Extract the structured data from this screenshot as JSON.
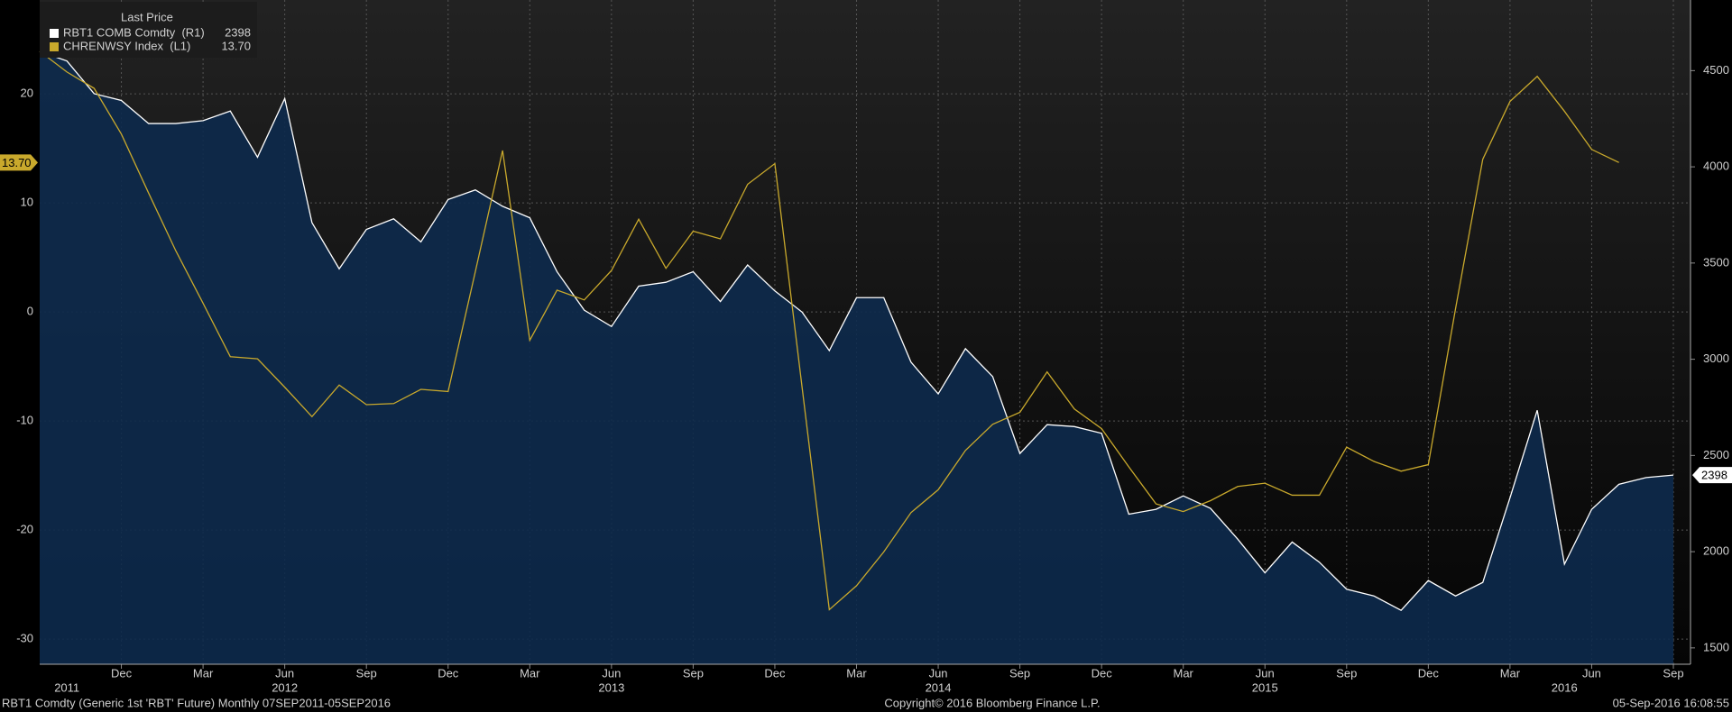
{
  "chart_data": {
    "type": "line",
    "legend_title": "Last Price",
    "x": [
      "2011-09",
      "2011-10",
      "2011-11",
      "2011-12",
      "2012-01",
      "2012-02",
      "2012-03",
      "2012-04",
      "2012-05",
      "2012-06",
      "2012-07",
      "2012-08",
      "2012-09",
      "2012-10",
      "2012-11",
      "2012-12",
      "2013-01",
      "2013-02",
      "2013-03",
      "2013-04",
      "2013-05",
      "2013-06",
      "2013-07",
      "2013-08",
      "2013-09",
      "2013-10",
      "2013-11",
      "2013-12",
      "2014-01",
      "2014-02",
      "2014-03",
      "2014-04",
      "2014-05",
      "2014-06",
      "2014-07",
      "2014-08",
      "2014-09",
      "2014-10",
      "2014-11",
      "2014-12",
      "2015-01",
      "2015-02",
      "2015-03",
      "2015-04",
      "2015-05",
      "2015-06",
      "2015-07",
      "2015-08",
      "2015-09",
      "2015-10",
      "2015-11",
      "2015-12",
      "2016-01",
      "2016-02",
      "2016-03",
      "2016-04",
      "2016-05",
      "2016-06",
      "2016-07",
      "2016-08",
      "2016-09"
    ],
    "series": [
      {
        "name": "RBT1 COMB Comdty  (R1)",
        "color": "#ffffff",
        "fill": "#0d2a4c",
        "axis": "y2",
        "last_price": 2398,
        "values": [
          4600,
          4550,
          4380,
          4345,
          4225,
          4225,
          4240,
          4290,
          4050,
          4355,
          3710,
          3470,
          3675,
          3730,
          3610,
          3830,
          3880,
          3795,
          3735,
          3455,
          3255,
          3170,
          3380,
          3400,
          3455,
          3300,
          3490,
          3355,
          3245,
          3045,
          3320,
          3320,
          2985,
          2820,
          3055,
          2910,
          2510,
          2660,
          2650,
          2615,
          2195,
          2220,
          2290,
          2225,
          2065,
          1890,
          2050,
          1945,
          1805,
          1770,
          1695,
          1850,
          1770,
          1840,
          2280,
          2735,
          1935,
          2220,
          2350,
          2385,
          2398
        ]
      },
      {
        "name": "CHRENWSY Index  (L1)",
        "color": "#c9a92c",
        "axis": "y",
        "last_price": 13.7,
        "last_price_label": "13.70",
        "values": [
          23.9,
          22,
          20.5,
          16.3,
          10.9,
          5.6,
          0.8,
          -4.1,
          -4.3,
          -6.9,
          -9.6,
          -6.7,
          -8.5,
          -8.4,
          -7.1,
          -7.3,
          3.7,
          14.8,
          -2.6,
          2.0,
          1.1,
          3.8,
          8.5,
          4.0,
          7.4,
          6.7,
          11.7,
          13.6,
          -6.9,
          -27.3,
          -25.1,
          -22,
          -18.4,
          -16.3,
          -12.7,
          -10.3,
          -9.2,
          -5.5,
          -8.9,
          -10.7,
          -14.2,
          -17.6,
          -18.3,
          -17.3,
          -16,
          -15.7,
          -16.8,
          -16.8,
          -12.4,
          -13.7,
          -14.6,
          -14,
          0.3,
          14,
          19.3,
          21.6,
          18.4,
          14.9,
          13.7,
          null,
          null
        ]
      }
    ],
    "xlim": [
      "2011-09",
      "2016-09"
    ],
    "xticks": [
      {
        "value": "2011-12",
        "label": "Dec"
      },
      {
        "value": "2012-03",
        "label": "Mar"
      },
      {
        "value": "2012-06",
        "label": "Jun"
      },
      {
        "value": "2012-09",
        "label": "Sep"
      },
      {
        "value": "2012-12",
        "label": "Dec"
      },
      {
        "value": "2013-03",
        "label": "Mar"
      },
      {
        "value": "2013-06",
        "label": "Jun"
      },
      {
        "value": "2013-09",
        "label": "Sep"
      },
      {
        "value": "2013-12",
        "label": "Dec"
      },
      {
        "value": "2014-03",
        "label": "Mar"
      },
      {
        "value": "2014-06",
        "label": "Jun"
      },
      {
        "value": "2014-09",
        "label": "Sep"
      },
      {
        "value": "2014-12",
        "label": "Dec"
      },
      {
        "value": "2015-03",
        "label": "Mar"
      },
      {
        "value": "2015-06",
        "label": "Jun"
      },
      {
        "value": "2015-09",
        "label": "Sep"
      },
      {
        "value": "2015-12",
        "label": "Dec"
      },
      {
        "value": "2016-03",
        "label": "Mar"
      },
      {
        "value": "2016-06",
        "label": "Jun"
      },
      {
        "value": "2016-09",
        "label": "Sep"
      }
    ],
    "year_labels": [
      {
        "value": "2011-10",
        "label": "2011"
      },
      {
        "value": "2012-06",
        "label": "2012"
      },
      {
        "value": "2013-06",
        "label": "2013"
      },
      {
        "value": "2014-06",
        "label": "2014"
      },
      {
        "value": "2015-06",
        "label": "2015"
      },
      {
        "value": "2016-05",
        "label": "2016"
      }
    ],
    "ylim": [
      -32.3,
      28.6
    ],
    "yticks": [
      -30,
      -20,
      -10,
      0,
      10,
      20
    ],
    "y2lim": [
      1415,
      4867
    ],
    "y2ticks": [
      1500,
      2000,
      2500,
      3000,
      3500,
      4000,
      4500
    ],
    "grid": true,
    "footer_left": "RBT1 Comdty (Generic 1st 'RBT' Future)  Monthly 07SEP2011-05SEP2016",
    "footer_center": "Copyright© 2016 Bloomberg Finance L.P.",
    "footer_right": "05-Sep-2016 16:08:55"
  }
}
